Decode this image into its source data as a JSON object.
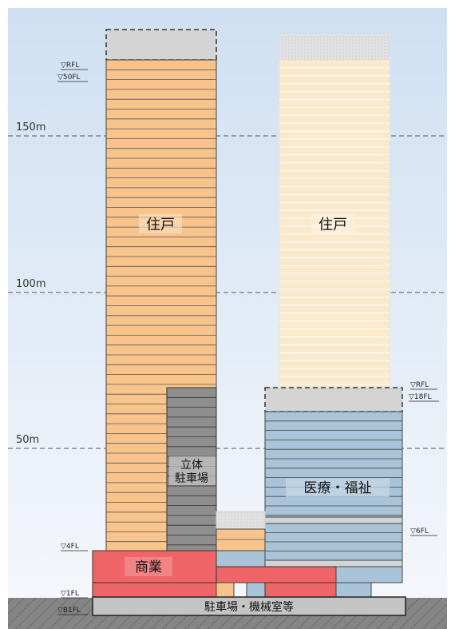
{
  "scale": {
    "h150": "150m",
    "h100": "100m",
    "h50": "50m"
  },
  "floor_marks": {
    "t1_rfl": "▽RFL",
    "t1_50fl": "▽50FL",
    "t1_4fl": "▽4FL",
    "t1_1fl": "▽1FL",
    "t1_b1fl": "▽B1FL",
    "t2_rfl": "▽RFL",
    "t2_18fl": "▽18FL",
    "t2_6fl": "▽6FL"
  },
  "zones": {
    "residential_left": "住戸",
    "residential_right": "住戸",
    "parking_line1": "立体",
    "parking_line2": "駐車場",
    "medical": "医療・福祉",
    "commercial": "商業",
    "basement": "駐車場・機械室等"
  },
  "colors": {
    "residential": "#f8c48c",
    "residential_future": "#fbe9cc",
    "parking": "#8e8e8e",
    "medical": "#a9c3d8",
    "commercial": "#ef6466",
    "mechanical": "#d9d9d9",
    "basement": "#c4c4c4",
    "ground": "#7f7f7f",
    "sky": "#e6eef8"
  }
}
